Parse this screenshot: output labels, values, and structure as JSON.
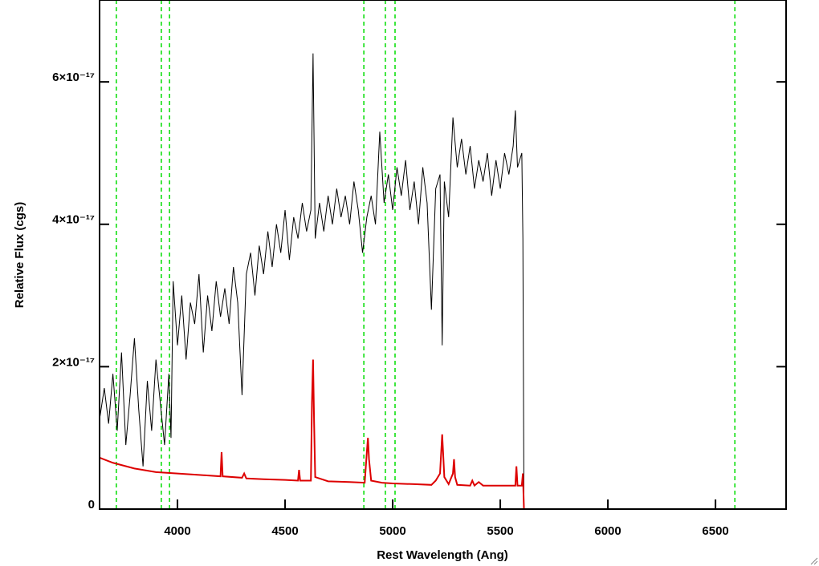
{
  "chart_data": {
    "type": "line",
    "xlabel": "Rest Wavelength (Ang)",
    "ylabel": "Relative Flux (cgs)",
    "xlim": [
      3638,
      6828
    ],
    "ylim": [
      0,
      7.15e-17
    ],
    "xticks": [
      4000,
      4500,
      5000,
      5500,
      6000,
      6500
    ],
    "yticks": [
      0,
      {
        "value": 2e-17,
        "label": "2×10⁻¹⁷"
      },
      {
        "value": 4e-17,
        "label": "4×10⁻¹⁷"
      },
      {
        "value": 6e-17,
        "label": "6×10⁻¹⁷"
      }
    ],
    "vlines": [
      3716,
      3925,
      3963,
      4866,
      4966,
      5011,
      6590
    ],
    "vline_color": "#00dd00",
    "series": [
      {
        "color": "#000000",
        "x": [
          3640,
          3660,
          3680,
          3700,
          3720,
          3740,
          3760,
          3780,
          3800,
          3820,
          3840,
          3860,
          3880,
          3900,
          3920,
          3940,
          3960,
          3970,
          3980,
          4000,
          4020,
          4040,
          4060,
          4080,
          4100,
          4120,
          4140,
          4160,
          4180,
          4200,
          4220,
          4240,
          4260,
          4280,
          4300,
          4320,
          4340,
          4360,
          4380,
          4400,
          4420,
          4440,
          4460,
          4480,
          4500,
          4520,
          4540,
          4560,
          4580,
          4600,
          4620,
          4630,
          4640,
          4660,
          4680,
          4700,
          4720,
          4740,
          4760,
          4780,
          4800,
          4820,
          4840,
          4860,
          4880,
          4900,
          4920,
          4940,
          4960,
          4980,
          5000,
          5020,
          5040,
          5060,
          5080,
          5100,
          5120,
          5140,
          5160,
          5180,
          5200,
          5220,
          5230,
          5240,
          5260,
          5280,
          5300,
          5320,
          5340,
          5360,
          5380,
          5400,
          5420,
          5440,
          5460,
          5480,
          5500,
          5520,
          5540,
          5560,
          5570,
          5580,
          5600,
          5605,
          5610,
          6828
        ],
        "values": [
          1.3e-17,
          1.7e-17,
          1.2e-17,
          1.9e-17,
          1.1e-17,
          2.2e-17,
          9e-18,
          1.6e-17,
          2.4e-17,
          1.4e-17,
          6e-18,
          1.8e-17,
          1.1e-17,
          2.1e-17,
          1.5e-17,
          9e-18,
          1.9e-17,
          1e-17,
          3.2e-17,
          2.3e-17,
          3e-17,
          2.1e-17,
          2.9e-17,
          2.6e-17,
          3.3e-17,
          2.2e-17,
          3e-17,
          2.5e-17,
          3.2e-17,
          2.7e-17,
          3.1e-17,
          2.6e-17,
          3.4e-17,
          2.9e-17,
          1.6e-17,
          3.3e-17,
          3.6e-17,
          3e-17,
          3.7e-17,
          3.3e-17,
          3.9e-17,
          3.4e-17,
          4e-17,
          3.6e-17,
          4.2e-17,
          3.5e-17,
          4.1e-17,
          3.8e-17,
          4.3e-17,
          3.9e-17,
          4.2e-17,
          6.4e-17,
          3.8e-17,
          4.3e-17,
          3.9e-17,
          4.4e-17,
          4e-17,
          4.5e-17,
          4.1e-17,
          4.4e-17,
          4e-17,
          4.6e-17,
          4.2e-17,
          3.6e-17,
          4.1e-17,
          4.4e-17,
          4e-17,
          5.3e-17,
          4.3e-17,
          4.7e-17,
          4.2e-17,
          4.8e-17,
          4.4e-17,
          4.9e-17,
          4.2e-17,
          4.6e-17,
          4e-17,
          4.8e-17,
          4.3e-17,
          2.8e-17,
          4.5e-17,
          4.7e-17,
          2.3e-17,
          4.6e-17,
          4.1e-17,
          5.5e-17,
          4.8e-17,
          5.2e-17,
          4.7e-17,
          5.1e-17,
          4.5e-17,
          4.9e-17,
          4.6e-17,
          5e-17,
          4.4e-17,
          4.9e-17,
          4.5e-17,
          5e-17,
          4.7e-17,
          5.1e-17,
          5.6e-17,
          4.8e-17,
          5e-17,
          3.8e-17,
          0,
          0
        ]
      },
      {
        "color": "#dd0000",
        "x": [
          3640,
          3700,
          3800,
          3900,
          4000,
          4100,
          4200,
          4205,
          4210,
          4300,
          4310,
          4320,
          4400,
          4500,
          4560,
          4565,
          4570,
          4620,
          4625,
          4630,
          4635,
          4640,
          4700,
          4800,
          4870,
          4880,
          4885,
          4890,
          4900,
          4950,
          5000,
          5100,
          5180,
          5200,
          5220,
          5230,
          5240,
          5260,
          5280,
          5285,
          5290,
          5300,
          5360,
          5370,
          5380,
          5400,
          5420,
          5500,
          5570,
          5575,
          5580,
          5600,
          5605,
          5610,
          6828
        ],
        "values": [
          7.2e-18,
          6.5e-18,
          5.7e-18,
          5.2e-18,
          5e-18,
          4.8e-18,
          4.6e-18,
          8e-18,
          4.6e-18,
          4.4e-18,
          5e-18,
          4.3e-18,
          4.2e-18,
          4.1e-18,
          4e-18,
          5.5e-18,
          4e-18,
          4e-18,
          1.5e-17,
          2.1e-17,
          1.2e-17,
          4.5e-18,
          3.9e-18,
          3.8e-18,
          3.7e-18,
          8e-18,
          1e-17,
          7e-18,
          4e-18,
          3.7e-18,
          3.6e-18,
          3.5e-18,
          3.4e-18,
          4e-18,
          5e-18,
          1.05e-17,
          4.5e-18,
          3.5e-18,
          5e-18,
          7e-18,
          4.5e-18,
          3.4e-18,
          3.3e-18,
          4e-18,
          3.3e-18,
          3.8e-18,
          3.3e-18,
          3.3e-18,
          3.3e-18,
          6e-18,
          3.3e-18,
          3.3e-18,
          5e-18,
          0,
          0
        ]
      }
    ]
  }
}
